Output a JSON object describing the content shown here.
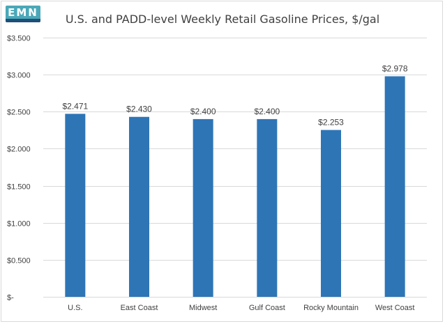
{
  "chart_data": {
    "type": "bar",
    "title": "U.S. and PADD-level Weekly Retail Gasoline Prices, $/gal",
    "categories": [
      "U.S.",
      "East Coast",
      "Midwest",
      "Gulf Coast",
      "Rocky Mountain",
      "West Coast"
    ],
    "values": [
      2.471,
      2.43,
      2.4,
      2.4,
      2.253,
      2.978
    ],
    "data_labels": [
      "$2.471",
      "$2.430",
      "$2.400",
      "$2.400",
      "$2.253",
      "$2.978"
    ],
    "ylim": [
      0,
      3.5
    ],
    "yticks": [
      0,
      0.5,
      1,
      1.5,
      2,
      2.5,
      3,
      3.5
    ],
    "ytick_labels": [
      "$-",
      "$0.500",
      "$1.000",
      "$1.500",
      "$2.000",
      "$2.500",
      "$3.000",
      "$3.500"
    ],
    "xlabel": "",
    "ylabel": "",
    "grid": true,
    "bar_color": "#2e75b6",
    "grid_color": "#d9d9d9"
  }
}
